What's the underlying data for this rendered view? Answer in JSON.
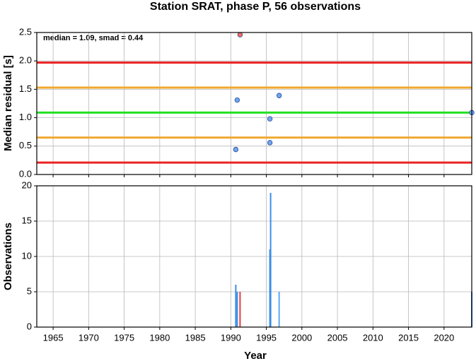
{
  "chart_data": [
    {
      "type": "scatter",
      "title": "Station SRAT, phase P, 56 observations",
      "y_label": "Median residual [s]",
      "annotation": "median = 1.09, smad = 0.44",
      "x": [
        1991.3,
        1990.9,
        1990.7,
        1995.5,
        1995.5,
        1996.8,
        2023.9
      ],
      "values": [
        2.46,
        1.31,
        0.44,
        0.98,
        0.56,
        1.39,
        1.09
      ],
      "colors": [
        "#f26a5e",
        "#6ea6f2",
        "#6ea6f2",
        "#6ea6f2",
        "#6ea6f2",
        "#6ea6f2",
        "#6ea6f2"
      ],
      "hlines": [
        {
          "value": 1.97,
          "color": "#ec2222"
        },
        {
          "value": 1.53,
          "color": "#f0a830"
        },
        {
          "value": 1.09,
          "color": "#22e022"
        },
        {
          "value": 0.65,
          "color": "#f0a830"
        },
        {
          "value": 0.21,
          "color": "#ec2222"
        }
      ],
      "xlim": [
        1962.7,
        2023.9
      ],
      "xticks": [
        1965,
        1970,
        1975,
        1980,
        1985,
        1990,
        1995,
        2000,
        2005,
        2010,
        2015,
        2020
      ],
      "ylim": [
        0,
        2.5
      ],
      "yticks": [
        {
          "value": 0,
          "label": "0.0"
        },
        0.5,
        {
          "value": 1,
          "label": "1.0"
        },
        1.5,
        {
          "value": 2,
          "label": "2.0"
        },
        2.5
      ],
      "grid": true
    },
    {
      "type": "bar",
      "x_label": "Year",
      "y_label": "Observations",
      "x": [
        1990.7,
        1990.9,
        1991.3,
        1995.5,
        1995.6,
        1996.8,
        2023.9
      ],
      "values": [
        6,
        5,
        5,
        11,
        19,
        5,
        5
      ],
      "colors": [
        "#3a8ee8",
        "#3a8ee8",
        "#e04040",
        "#3a8ee8",
        "#3a8ee8",
        "#5aaaf0",
        "#3a8ee8"
      ],
      "xlim": [
        1962.7,
        2023.9
      ],
      "xticks": [
        1965,
        1970,
        1975,
        1980,
        1985,
        1990,
        1995,
        2000,
        2005,
        2010,
        2015,
        2020
      ],
      "ylim": [
        0,
        20
      ],
      "yticks": [
        0,
        5,
        10,
        15,
        20
      ],
      "grid": true
    }
  ]
}
